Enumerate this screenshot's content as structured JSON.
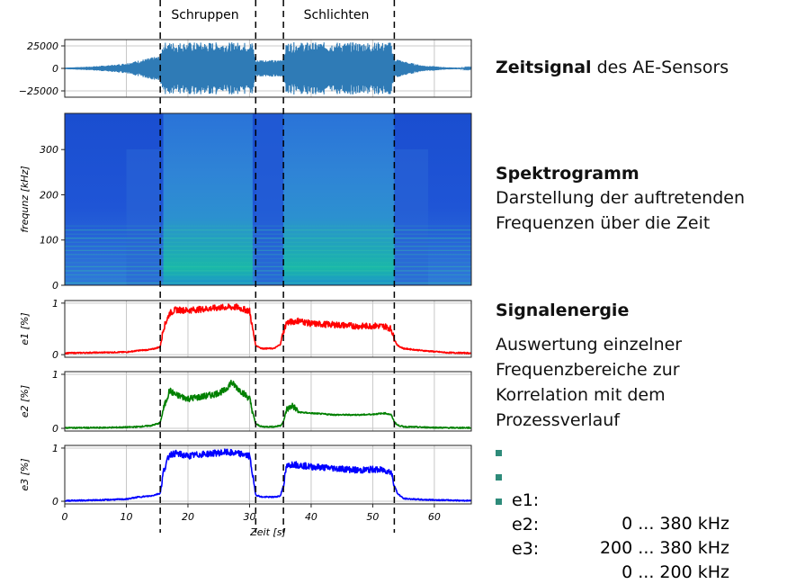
{
  "chart_data": [
    {
      "type": "line",
      "panel": "zeitsignal",
      "yticks": [
        "25000",
        "0",
        "−25000"
      ],
      "ytick_values": [
        25000,
        0,
        -25000
      ],
      "ylim": [
        -32000,
        32000
      ],
      "xlim": [
        0,
        66
      ],
      "grid": true,
      "envelope": {
        "x": [
          0,
          4,
          8,
          10,
          12,
          14,
          15.5,
          16,
          30.5,
          31,
          32,
          34.5,
          35.5,
          36,
          53,
          53.5,
          55,
          58,
          62,
          66
        ],
        "amplitude": [
          800,
          2000,
          4000,
          6000,
          9000,
          12000,
          14000,
          29000,
          29000,
          9000,
          10000,
          9000,
          12000,
          29000,
          29000,
          12000,
          8000,
          3500,
          1200,
          400
        ]
      },
      "color": "#2f7bb6"
    },
    {
      "type": "heatmap",
      "panel": "spektrogramm",
      "ylabel": "frequnz [kHz]",
      "yticks": [
        "300",
        "200",
        "100",
        "0"
      ],
      "ytick_values": [
        300,
        200,
        100,
        0
      ],
      "ylim": [
        0,
        380
      ],
      "xlim": [
        0,
        66
      ],
      "active_segments": [
        [
          16,
          30.5
        ],
        [
          35.5,
          53.5
        ]
      ]
    },
    {
      "type": "line",
      "panel": "e1",
      "ylabel": "e1 [%]",
      "yticks": [
        "1",
        "0"
      ],
      "ylim": [
        -0.05,
        1.05
      ],
      "xlim": [
        0,
        66
      ],
      "grid": true,
      "color": "#ff0000",
      "x": [
        0,
        5,
        10,
        12,
        14,
        15.5,
        16,
        17,
        18,
        20,
        22,
        24,
        26,
        28,
        29,
        30,
        30.5,
        31,
        32,
        33,
        34,
        35,
        35.5,
        36,
        38,
        40,
        44,
        48,
        50,
        52,
        53,
        53.5,
        54,
        55,
        58,
        62,
        66
      ],
      "y": [
        0.03,
        0.04,
        0.05,
        0.08,
        0.1,
        0.15,
        0.5,
        0.8,
        0.87,
        0.86,
        0.88,
        0.9,
        0.92,
        0.92,
        0.88,
        0.85,
        0.5,
        0.18,
        0.12,
        0.12,
        0.12,
        0.2,
        0.45,
        0.62,
        0.66,
        0.6,
        0.58,
        0.55,
        0.56,
        0.55,
        0.5,
        0.3,
        0.18,
        0.12,
        0.08,
        0.04,
        0.03
      ]
    },
    {
      "type": "line",
      "panel": "e2",
      "ylabel": "e2 [%]",
      "yticks": [
        "1",
        "0"
      ],
      "ylim": [
        -0.05,
        1.05
      ],
      "xlim": [
        0,
        66
      ],
      "grid": true,
      "color": "#008000",
      "x": [
        0,
        5,
        10,
        12,
        14,
        15.5,
        16,
        17,
        18,
        20,
        22,
        24,
        26,
        27,
        28,
        29,
        30,
        30.5,
        31,
        32,
        34,
        35,
        35.5,
        36,
        37,
        38,
        40,
        44,
        48,
        50,
        52,
        53,
        53.5,
        54,
        55,
        58,
        62,
        66
      ],
      "y": [
        0.01,
        0.01,
        0.02,
        0.03,
        0.05,
        0.1,
        0.35,
        0.7,
        0.62,
        0.55,
        0.58,
        0.62,
        0.7,
        0.85,
        0.75,
        0.65,
        0.55,
        0.3,
        0.08,
        0.03,
        0.03,
        0.05,
        0.12,
        0.35,
        0.42,
        0.3,
        0.28,
        0.25,
        0.25,
        0.26,
        0.28,
        0.25,
        0.12,
        0.06,
        0.03,
        0.02,
        0.01,
        0.01
      ]
    },
    {
      "type": "line",
      "panel": "e3",
      "ylabel": "e3 [%]",
      "yticks": [
        "1",
        "0"
      ],
      "xticks": [
        "0",
        "10",
        "20",
        "30",
        "40",
        "50",
        "60"
      ],
      "xtick_values": [
        0,
        10,
        20,
        30,
        40,
        50,
        60
      ],
      "xlabel": "Zeit [s]",
      "ylim": [
        -0.05,
        1.05
      ],
      "xlim": [
        0,
        66
      ],
      "grid": true,
      "color": "#0000ff",
      "x": [
        0,
        5,
        10,
        12,
        14,
        15.5,
        16,
        17,
        18,
        20,
        22,
        24,
        26,
        28,
        29,
        30,
        30.5,
        31,
        32,
        34,
        35,
        35.5,
        36,
        37,
        38,
        40,
        44,
        48,
        50,
        52,
        53,
        53.5,
        54,
        55,
        58,
        62,
        66
      ],
      "y": [
        0.01,
        0.02,
        0.04,
        0.08,
        0.1,
        0.15,
        0.55,
        0.88,
        0.9,
        0.85,
        0.88,
        0.9,
        0.92,
        0.9,
        0.88,
        0.85,
        0.5,
        0.12,
        0.08,
        0.08,
        0.1,
        0.3,
        0.65,
        0.7,
        0.68,
        0.65,
        0.62,
        0.58,
        0.6,
        0.58,
        0.55,
        0.3,
        0.15,
        0.05,
        0.03,
        0.02,
        0.01
      ]
    }
  ],
  "phases": {
    "schruppen": "Schruppen",
    "schlichten": "Schlichten",
    "boundaries": [
      15.5,
      31,
      35.5,
      53.5
    ]
  },
  "right": {
    "zeitsignal_bold": "Zeitsignal",
    "zeitsignal_rest": " des AE-Sensors",
    "spektrogramm_title": "Spektrogramm",
    "spektrogramm_desc_1": "Darstellung der auftretenden",
    "spektrogramm_desc_2": "Frequenzen über die Zeit",
    "signalenergie_title": "Signalenergie",
    "signalenergie_desc": [
      "Auswertung einzelner",
      "Frequenzbereiche zur",
      "Korrelation mit dem",
      "Prozessverlauf"
    ],
    "bullets": [
      {
        "key": "e1:",
        "value": "0 ... 380 kHz"
      },
      {
        "key": "e2:",
        "value": "200 ... 380 kHz"
      },
      {
        "key": "e3:",
        "value": "0 ... 200 kHz"
      }
    ],
    "bullet_color": "#2e8b7a"
  }
}
